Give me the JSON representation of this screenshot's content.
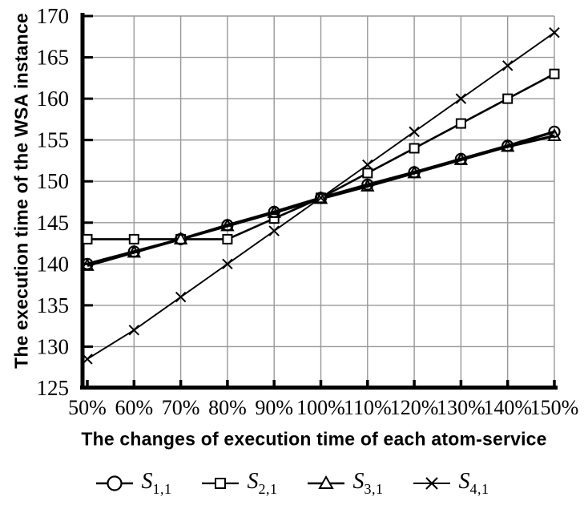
{
  "figure": {
    "background": "#ffffff",
    "ink_color": "#000000",
    "grid_color": "#989898"
  },
  "chart_data": {
    "type": "line",
    "title": "",
    "xlabel": "The  changes of execution time of each atom-service",
    "ylabel": "The execution time of the WSA instance",
    "categories": [
      "50%",
      "60%",
      "70%",
      "80%",
      "90%",
      "100%",
      "110%",
      "120%",
      "130%",
      "140%",
      "150%"
    ],
    "ylim": [
      125,
      170
    ],
    "ytick_step": 5,
    "ytick_labels": [
      "125",
      "130",
      "135",
      "140",
      "145",
      "150",
      "155",
      "160",
      "165",
      "170"
    ],
    "grid": true,
    "legend_position": "bottom",
    "series": [
      {
        "name": "S1,1",
        "label_base": "S",
        "label_sub": "1,1",
        "marker": "circle",
        "line_width": 3.4,
        "values": [
          140,
          141.5,
          143,
          144.7,
          146.3,
          148,
          149.6,
          151.1,
          152.7,
          154.3,
          156
        ]
      },
      {
        "name": "S2,1",
        "label_base": "S",
        "label_sub": "2,1",
        "marker": "square",
        "line_width": 2.6,
        "values": [
          143,
          143,
          143,
          143,
          145.5,
          148,
          151,
          154,
          157,
          160,
          163
        ]
      },
      {
        "name": "S3,1",
        "label_base": "S",
        "label_sub": "3,1",
        "marker": "triangle",
        "line_width": 3.4,
        "values": [
          139.8,
          141.4,
          143,
          144.6,
          146.2,
          147.9,
          149.4,
          151,
          152.6,
          154.2,
          155.5
        ]
      },
      {
        "name": "S4,1",
        "label_base": "S",
        "label_sub": "4,1",
        "marker": "x",
        "line_width": 1.9,
        "values": [
          128.5,
          132,
          136,
          140,
          144,
          148,
          152,
          156,
          160,
          164,
          168
        ]
      }
    ]
  }
}
